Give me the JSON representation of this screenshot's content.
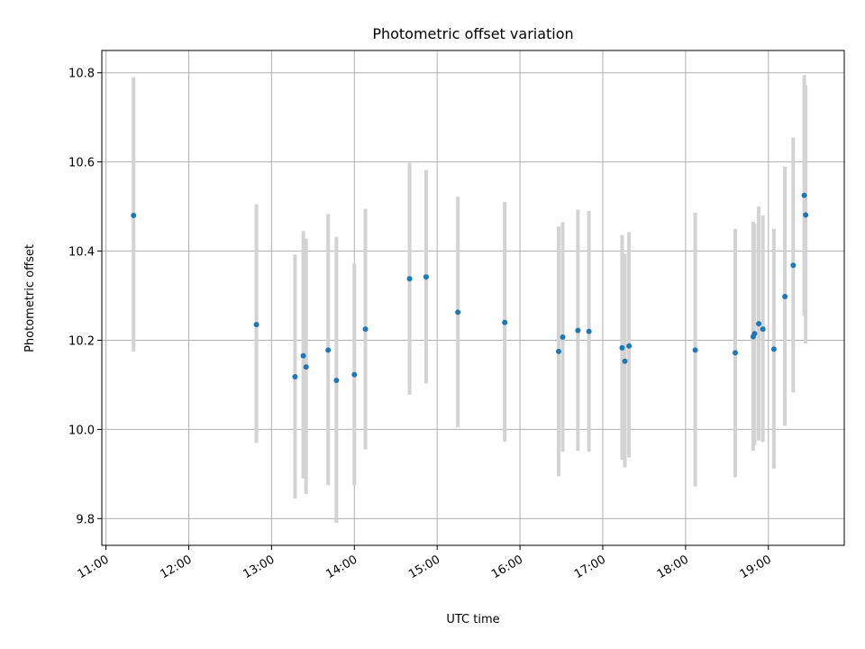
{
  "chart_data": {
    "type": "scatter",
    "title": "Photometric offset variation",
    "xlabel": "UTC time",
    "ylabel": "Photometric offset",
    "xlim": [
      "10:57",
      "19:55"
    ],
    "ylim": [
      9.74,
      10.85
    ],
    "x_ticks": [
      "11:00",
      "12:00",
      "13:00",
      "14:00",
      "15:00",
      "16:00",
      "17:00",
      "18:00",
      "19:00"
    ],
    "y_ticks": [
      9.8,
      10.0,
      10.2,
      10.4,
      10.6,
      10.8
    ],
    "y_tick_labels": [
      "9.8",
      "10.0",
      "10.2",
      "10.4",
      "10.6",
      "10.8"
    ],
    "grid": true,
    "colors": {
      "point": "#1f77b4",
      "errorbar": "#d3d3d3",
      "grid": "#b0b0b0"
    },
    "points": [
      {
        "x": "11:20",
        "y": 10.48,
        "yerr_low": 10.175,
        "yerr_high": 10.79
      },
      {
        "x": "12:49",
        "y": 10.235,
        "yerr_low": 9.97,
        "yerr_high": 10.505
      },
      {
        "x": "13:17",
        "y": 10.118,
        "yerr_low": 9.845,
        "yerr_high": 10.392
      },
      {
        "x": "13:23",
        "y": 10.165,
        "yerr_low": 9.89,
        "yerr_high": 10.445
      },
      {
        "x": "13:25",
        "y": 10.14,
        "yerr_low": 9.855,
        "yerr_high": 10.428
      },
      {
        "x": "13:41",
        "y": 10.178,
        "yerr_low": 9.875,
        "yerr_high": 10.483
      },
      {
        "x": "13:47",
        "y": 10.11,
        "yerr_low": 9.79,
        "yerr_high": 10.432
      },
      {
        "x": "14:00",
        "y": 10.123,
        "yerr_low": 9.875,
        "yerr_high": 10.372
      },
      {
        "x": "14:08",
        "y": 10.225,
        "yerr_low": 9.955,
        "yerr_high": 10.495
      },
      {
        "x": "14:40",
        "y": 10.338,
        "yerr_low": 10.078,
        "yerr_high": 10.598
      },
      {
        "x": "14:52",
        "y": 10.342,
        "yerr_low": 10.103,
        "yerr_high": 10.582
      },
      {
        "x": "15:15",
        "y": 10.263,
        "yerr_low": 10.005,
        "yerr_high": 10.522
      },
      {
        "x": "15:49",
        "y": 10.24,
        "yerr_low": 9.972,
        "yerr_high": 10.51
      },
      {
        "x": "16:28",
        "y": 10.175,
        "yerr_low": 9.895,
        "yerr_high": 10.455
      },
      {
        "x": "16:31",
        "y": 10.207,
        "yerr_low": 9.95,
        "yerr_high": 10.465
      },
      {
        "x": "16:42",
        "y": 10.222,
        "yerr_low": 9.952,
        "yerr_high": 10.493
      },
      {
        "x": "16:50",
        "y": 10.22,
        "yerr_low": 9.95,
        "yerr_high": 10.49
      },
      {
        "x": "17:14",
        "y": 10.183,
        "yerr_low": 9.932,
        "yerr_high": 10.436
      },
      {
        "x": "17:16",
        "y": 10.153,
        "yerr_low": 9.915,
        "yerr_high": 10.394
      },
      {
        "x": "17:19",
        "y": 10.187,
        "yerr_low": 9.937,
        "yerr_high": 10.442
      },
      {
        "x": "18:07",
        "y": 10.178,
        "yerr_low": 9.872,
        "yerr_high": 10.486
      },
      {
        "x": "18:36",
        "y": 10.172,
        "yerr_low": 9.893,
        "yerr_high": 10.45
      },
      {
        "x": "18:49",
        "y": 10.208,
        "yerr_low": 9.952,
        "yerr_high": 10.466
      },
      {
        "x": "18:50",
        "y": 10.215,
        "yerr_low": 9.965,
        "yerr_high": 10.462
      },
      {
        "x": "18:53",
        "y": 10.237,
        "yerr_low": 9.975,
        "yerr_high": 10.5
      },
      {
        "x": "18:56",
        "y": 10.225,
        "yerr_low": 9.972,
        "yerr_high": 10.48
      },
      {
        "x": "19:04",
        "y": 10.18,
        "yerr_low": 9.912,
        "yerr_high": 10.45
      },
      {
        "x": "19:12",
        "y": 10.298,
        "yerr_low": 10.008,
        "yerr_high": 10.59
      },
      {
        "x": "19:18",
        "y": 10.368,
        "yerr_low": 10.083,
        "yerr_high": 10.655
      },
      {
        "x": "19:26",
        "y": 10.525,
        "yerr_low": 10.255,
        "yerr_high": 10.795
      },
      {
        "x": "19:27",
        "y": 10.481,
        "yerr_low": 10.193,
        "yerr_high": 10.772
      }
    ]
  }
}
